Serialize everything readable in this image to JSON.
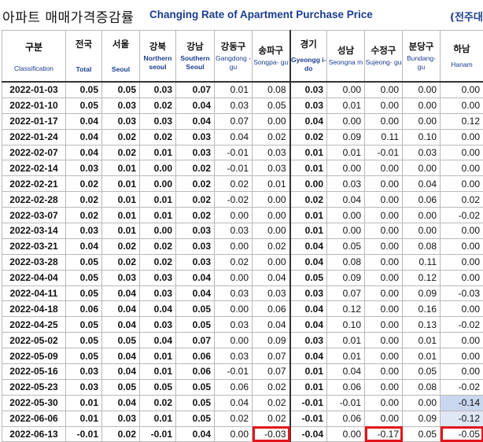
{
  "title": {
    "korean": "아파트 매매가격증감률",
    "english": "Changing Rate of Apartment Purchase Price",
    "unit_partial": "(전주대"
  },
  "columns": [
    {
      "kr": "구분",
      "en": "Classification"
    },
    {
      "kr": "전국",
      "en": "Total"
    },
    {
      "kr": "서울",
      "en": "Seoul"
    },
    {
      "kr": "강북",
      "en": "Northern seoul"
    },
    {
      "kr": "강남",
      "en": "Southern Seoul"
    },
    {
      "kr": "강동구",
      "en": "Gangdong -gu"
    },
    {
      "kr": "송파구",
      "en": "Songpa- gu"
    },
    {
      "kr": "경기",
      "en": "Gyeongg i-do"
    },
    {
      "kr": "성남",
      "en": "Seongna m"
    },
    {
      "kr": "수정구",
      "en": "Sujeong- gu"
    },
    {
      "kr": "분당구",
      "en": "Bundang- gu"
    },
    {
      "kr": "하남",
      "en": "Hanam"
    }
  ],
  "rows": [
    [
      "2022-01-03",
      "0.05",
      "0.05",
      "0.03",
      "0.07",
      "0.01",
      "0.08",
      "0.03",
      "0.00",
      "0.00",
      "0.00",
      "0.00"
    ],
    [
      "2022-01-10",
      "0.05",
      "0.03",
      "0.02",
      "0.04",
      "0.03",
      "0.05",
      "0.03",
      "0.01",
      "0.00",
      "0.00",
      "0.00"
    ],
    [
      "2022-01-17",
      "0.04",
      "0.03",
      "0.03",
      "0.04",
      "0.07",
      "0.00",
      "0.04",
      "0.00",
      "0.00",
      "0.00",
      "0.12"
    ],
    [
      "2022-01-24",
      "0.04",
      "0.02",
      "0.02",
      "0.03",
      "0.04",
      "0.02",
      "0.02",
      "0.09",
      "0.11",
      "0.10",
      "0.00"
    ],
    [
      "2022-02-07",
      "0.04",
      "0.02",
      "0.01",
      "0.03",
      "-0.01",
      "0.03",
      "0.01",
      "0.01",
      "-0.01",
      "0.03",
      "0.00"
    ],
    [
      "2022-02-14",
      "0.03",
      "0.01",
      "0.00",
      "0.02",
      "-0.01",
      "0.03",
      "0.01",
      "0.00",
      "0.00",
      "0.00",
      "0.00"
    ],
    [
      "2022-02-21",
      "0.02",
      "0.01",
      "0.00",
      "0.02",
      "0.02",
      "0.01",
      "0.00",
      "0.03",
      "0.00",
      "0.04",
      "0.00"
    ],
    [
      "2022-02-28",
      "0.02",
      "0.01",
      "0.01",
      "0.02",
      "-0.02",
      "0.00",
      "0.02",
      "0.04",
      "0.00",
      "0.06",
      "0.02"
    ],
    [
      "2022-03-07",
      "0.02",
      "0.01",
      "0.01",
      "0.02",
      "0.00",
      "0.00",
      "0.01",
      "0.00",
      "0.00",
      "0.00",
      "-0.02"
    ],
    [
      "2022-03-14",
      "0.03",
      "0.01",
      "0.00",
      "0.03",
      "0.03",
      "0.00",
      "0.01",
      "0.00",
      "0.00",
      "0.00",
      "0.00"
    ],
    [
      "2022-03-21",
      "0.04",
      "0.02",
      "0.02",
      "0.03",
      "0.00",
      "0.02",
      "0.04",
      "0.05",
      "0.00",
      "0.08",
      "0.00"
    ],
    [
      "2022-03-28",
      "0.05",
      "0.02",
      "0.02",
      "0.03",
      "0.02",
      "0.00",
      "0.04",
      "0.08",
      "0.00",
      "0.11",
      "0.00"
    ],
    [
      "2022-04-04",
      "0.05",
      "0.03",
      "0.03",
      "0.04",
      "0.00",
      "0.04",
      "0.05",
      "0.09",
      "0.00",
      "0.12",
      "0.00"
    ],
    [
      "2022-04-11",
      "0.05",
      "0.04",
      "0.03",
      "0.04",
      "0.03",
      "0.03",
      "0.03",
      "0.07",
      "0.00",
      "0.09",
      "-0.03"
    ],
    [
      "2022-04-18",
      "0.06",
      "0.04",
      "0.04",
      "0.05",
      "0.00",
      "0.06",
      "0.04",
      "0.12",
      "0.00",
      "0.16",
      "0.00"
    ],
    [
      "2022-04-25",
      "0.05",
      "0.04",
      "0.03",
      "0.05",
      "0.03",
      "0.04",
      "0.04",
      "0.10",
      "0.00",
      "0.13",
      "-0.02"
    ],
    [
      "2022-05-02",
      "0.05",
      "0.05",
      "0.04",
      "0.07",
      "0.00",
      "0.09",
      "0.03",
      "0.01",
      "0.00",
      "0.01",
      "0.00"
    ],
    [
      "2022-05-09",
      "0.05",
      "0.04",
      "0.01",
      "0.06",
      "0.03",
      "0.07",
      "0.04",
      "0.01",
      "0.00",
      "0.01",
      "0.00"
    ],
    [
      "2022-05-16",
      "0.03",
      "0.04",
      "0.01",
      "0.06",
      "-0.01",
      "0.07",
      "0.01",
      "0.04",
      "0.00",
      "0.05",
      "0.00"
    ],
    [
      "2022-05-23",
      "0.03",
      "0.05",
      "0.05",
      "0.05",
      "0.06",
      "0.02",
      "0.01",
      "0.06",
      "0.00",
      "0.08",
      "-0.02"
    ],
    [
      "2022-05-30",
      "0.01",
      "0.04",
      "0.02",
      "0.05",
      "0.04",
      "0.02",
      "-0.01",
      "-0.01",
      "0.00",
      "0.00",
      "-0.14"
    ],
    [
      "2022-06-06",
      "0.01",
      "0.03",
      "0.01",
      "0.05",
      "0.02",
      "0.02",
      "-0.01",
      "0.06",
      "0.00",
      "0.09",
      "-0.12"
    ],
    [
      "2022-06-13",
      "-0.01",
      "0.02",
      "-0.01",
      "0.04",
      "0.00",
      "-0.03",
      "-0.04",
      "0.00",
      "-0.17",
      "0.05",
      "-0.05"
    ]
  ],
  "highlight_color": "#e3141b",
  "header_text_color": "#1b3d8f"
}
